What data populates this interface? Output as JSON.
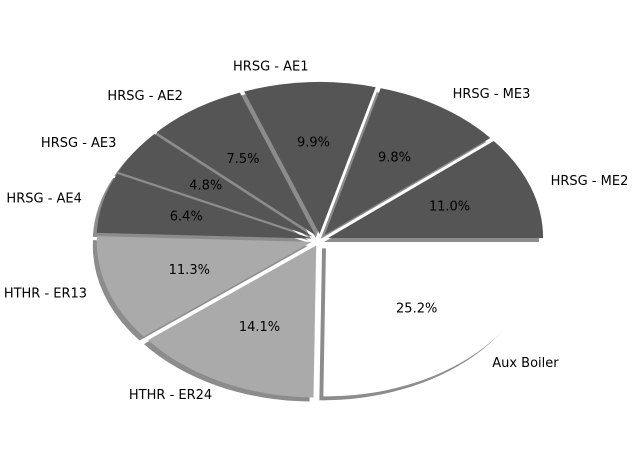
{
  "chart_data": {
    "type": "pie",
    "title": "",
    "slices": [
      {
        "label": "HRSG - ME2",
        "pct_label": "11.0%",
        "value": 11.0,
        "color": "#555555"
      },
      {
        "label": "HRSG - ME3",
        "pct_label": "9.8%",
        "value": 9.8,
        "color": "#555555"
      },
      {
        "label": "HRSG - AE1",
        "pct_label": "9.9%",
        "value": 9.9,
        "color": "#555555"
      },
      {
        "label": "HRSG - AE2",
        "pct_label": "7.5%",
        "value": 7.5,
        "color": "#555555"
      },
      {
        "label": "HRSG - AE3",
        "pct_label": "4.8%",
        "value": 4.8,
        "color": "#555555"
      },
      {
        "label": "HRSG - AE4",
        "pct_label": "6.4%",
        "value": 6.4,
        "color": "#555555"
      },
      {
        "label": "HTHR - ER13",
        "pct_label": "11.3%",
        "value": 11.3,
        "color": "#aaaaaa"
      },
      {
        "label": "HTHR - ER24",
        "pct_label": "14.1%",
        "value": 14.1,
        "color": "#aaaaaa"
      },
      {
        "label": "Aux Boiler",
        "pct_label": "25.2%",
        "value": 25.2,
        "color": "#ffffff"
      }
    ],
    "start_angle_deg": 0,
    "direction": "counterclockwise",
    "exploded": true,
    "shadow": true,
    "legend": "none"
  }
}
